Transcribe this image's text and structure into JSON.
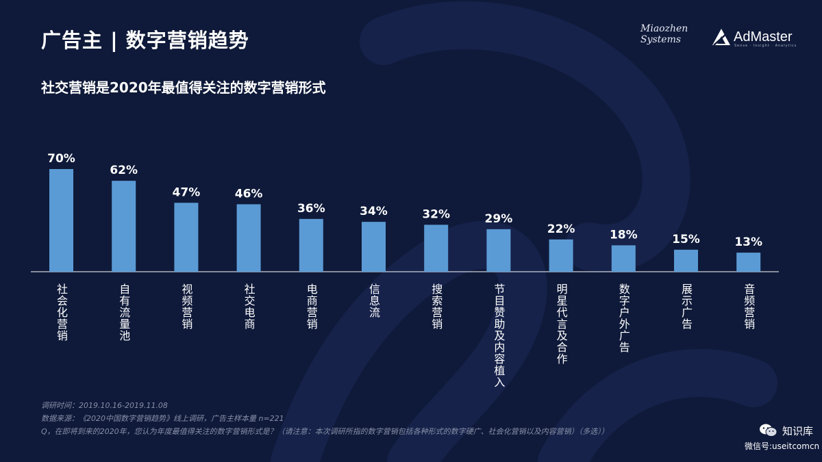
{
  "header": {
    "title": "广告主 | 数字营销趋势",
    "subtitle": "社交营销是2020年最值得关注的数字营销形式"
  },
  "logos": {
    "miaozhen": [
      "Miaozhen",
      "Systems"
    ],
    "admaster": {
      "name": "AdMaster",
      "tagline": "Sense · Insight · Analytics"
    }
  },
  "colors": {
    "background": "#0f1a3a",
    "bar": "#5b9bd5",
    "text": "#ffffff",
    "footnote": "#8790a8"
  },
  "chart_data": {
    "type": "bar",
    "categories": [
      "社会化营销",
      "自有流量池",
      "视频营销",
      "社交电商",
      "电商营销",
      "信息流",
      "搜索营销",
      "节目赞助及内容植入",
      "明星代言及合作",
      "数字户外广告",
      "展示广告",
      "音频营销"
    ],
    "values": [
      70,
      62,
      47,
      46,
      36,
      34,
      32,
      29,
      22,
      18,
      15,
      13
    ],
    "value_labels": [
      "70%",
      "62%",
      "47%",
      "46%",
      "36%",
      "34%",
      "32%",
      "29%",
      "22%",
      "18%",
      "15%",
      "13%"
    ],
    "unit": "%",
    "ylim": [
      0,
      70
    ],
    "grid": false,
    "legend": "none",
    "category_label_orientation": "vertical"
  },
  "footnotes": [
    "调研时间：2019.10.16-2019.11.08",
    "数据来源：《2020中国数字营销趋势》线上调研，广告主样本量 n=221",
    "Q，在即将到来的2020年，您认为年度最值得关注的数字营销形式是？（请注意：本次调研所指的数字营销包括各种形式的数字硬广、社会化营销以及内容营销）（多选））"
  ],
  "watermark": {
    "name": "知识库",
    "wechat_id": "微信号:useitcomcn",
    "icon": "wechat-icon"
  }
}
